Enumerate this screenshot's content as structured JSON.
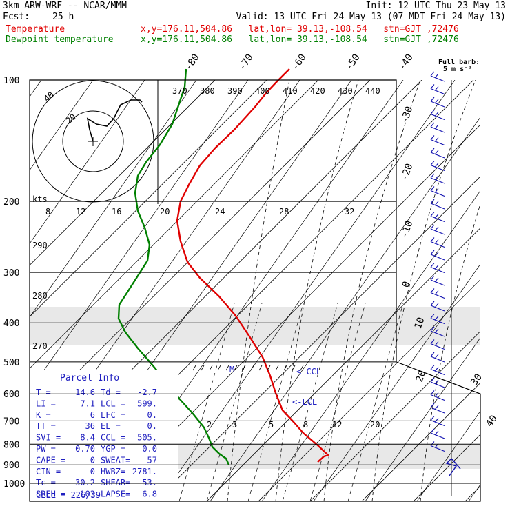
{
  "header": {
    "model": "3km ARW-WRF -- NCAR/MMM",
    "init": "Init: 12 UTC Thu 23 May 13",
    "fcst_label": "Fcst:",
    "fcst_value": "25 h",
    "valid": "Valid: 13 UTC Fri 24 May 13 (07 MDT Fri 24 May 13)",
    "temp_label": "Temperature",
    "dew_label": "Dewpoint temperature",
    "loc_info": "x,y=176.11,504.86   lat,lon= 39.13,-108.54   stn=GJT ,72476"
  },
  "colors": {
    "temperature": "#e00000",
    "dewpoint": "#008000",
    "parcel": "#2020c0",
    "wind": "#1010b0"
  },
  "chart_data": {
    "type": "line",
    "title": "Skew-T log-P sounding",
    "y_axis": {
      "scale": "log",
      "range": [
        1000,
        100
      ],
      "ticks": [
        100,
        200,
        300,
        400,
        500,
        600,
        700,
        800,
        900,
        1000
      ]
    },
    "isotherm_labels": [
      "-80",
      "-70",
      "-60",
      "-50",
      "-40",
      "-30",
      "-20",
      "-10",
      "0",
      "10",
      "20",
      "30",
      "40"
    ],
    "theta_labels": [
      "370",
      "380",
      "390",
      "400",
      "410",
      "420",
      "430",
      "440"
    ],
    "theta_left_labels": [
      "290",
      "280",
      "270"
    ],
    "wind_speed_labels": [
      "kts",
      "8",
      "12",
      "16",
      "20",
      "24",
      "28",
      "32"
    ],
    "mixing_ratio_labels": [
      "2",
      "3",
      "5",
      "8",
      "12",
      "20"
    ],
    "level_markers": [
      "M",
      "<-CCL",
      "<-LCL"
    ],
    "series": [
      {
        "name": "Temperature",
        "color": "#e00000",
        "points": [
          [
            420,
            100
          ],
          [
            402,
            118
          ],
          [
            386,
            135
          ],
          [
            370,
            155
          ],
          [
            340,
            188
          ],
          [
            312,
            215
          ],
          [
            290,
            240
          ],
          [
            274,
            268
          ],
          [
            262,
            292
          ],
          [
            257,
            320
          ],
          [
            262,
            350
          ],
          [
            272,
            380
          ],
          [
            290,
            403
          ],
          [
            318,
            430
          ],
          [
            342,
            458
          ],
          [
            362,
            488
          ],
          [
            381,
            518
          ],
          [
            392,
            545
          ],
          [
            400,
            570
          ],
          [
            410,
            595
          ],
          [
            426,
            612
          ],
          [
            440,
            628
          ],
          [
            460,
            645
          ],
          [
            476,
            660
          ],
          [
            470,
            662
          ],
          [
            461,
            670
          ]
        ]
      },
      {
        "name": "Dewpoint temperature",
        "color": "#008000",
        "points": [
          [
            270,
            100
          ],
          [
            268,
            126
          ],
          [
            260,
            150
          ],
          [
            250,
            180
          ],
          [
            232,
            210
          ],
          [
            212,
            235
          ],
          [
            200,
            255
          ],
          [
            196,
            280
          ],
          [
            200,
            306
          ],
          [
            210,
            330
          ],
          [
            217,
            355
          ],
          [
            214,
            378
          ],
          [
            200,
            400
          ],
          [
            184,
            425
          ],
          [
            173,
            442
          ],
          [
            172,
            462
          ],
          [
            182,
            482
          ],
          [
            200,
            505
          ],
          [
            220,
            528
          ],
          [
            240,
            552
          ],
          [
            260,
            578
          ],
          [
            280,
            600
          ],
          [
            296,
            620
          ],
          [
            303,
            635
          ],
          [
            308,
            648
          ],
          [
            318,
            658
          ],
          [
            328,
            665
          ],
          [
            332,
            674
          ]
        ]
      }
    ],
    "hodograph": {
      "speed_labels": [
        "20",
        "40"
      ],
      "points": [
        [
          135,
          205
        ],
        [
          130,
          188
        ],
        [
          127,
          172
        ],
        [
          140,
          180
        ],
        [
          155,
          183
        ],
        [
          165,
          172
        ],
        [
          175,
          152
        ],
        [
          190,
          145
        ],
        [
          203,
          145
        ],
        [
          206,
          148
        ]
      ]
    },
    "parcel_info": {
      "title": "Parcel Info",
      "rows": [
        [
          "T  =",
          "14.6",
          "Td =",
          "-2.7"
        ],
        [
          "LI =",
          "7.1",
          "LCL =",
          "599."
        ],
        [
          "K  =",
          "6",
          "LFC =",
          "0."
        ],
        [
          "TT =",
          "36",
          "EL  =",
          "0."
        ],
        [
          "SVI =",
          "8.4",
          "CCL =",
          "505."
        ],
        [
          "PW =",
          "0.70",
          "YGP =",
          "0.0"
        ],
        [
          "CAPE =",
          "0",
          "SWEAT=",
          "57"
        ],
        [
          "CIN =",
          "0",
          "HWBZ=",
          "2781."
        ],
        [
          "Tc =",
          "30.2",
          "SHEAR=",
          "53."
        ],
        [
          "SREH =",
          "103",
          "LAPSE=",
          "6.8"
        ]
      ],
      "cell": "CELL = 226/39"
    },
    "wind_barb_label": "Full barb:",
    "wind_barb_unit": "5 m s⁻¹"
  }
}
